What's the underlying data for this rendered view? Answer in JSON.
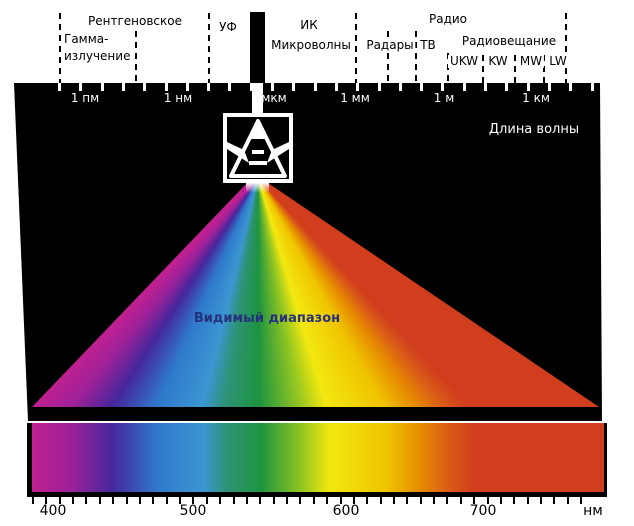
{
  "bands": {
    "gamma_line1": "Гамма-",
    "gamma_line2": "излучение",
    "xray": "Рентгеновское",
    "uv": "УФ",
    "ir": "ИК",
    "microwaves": "Микроволны",
    "radio": "Радио",
    "radar": "Радары",
    "tv": "ТВ",
    "broadcasting": "Радиовещание",
    "ukw": "UKW",
    "kw": "KW",
    "mw": "MW",
    "lw": "LW"
  },
  "wavelength_scale": {
    "labels": [
      "1 пм",
      "1 нм",
      "мкм",
      "1 мм",
      "1 м",
      "1 км"
    ],
    "axis_title": "Длина волны"
  },
  "visible_range_label": "Видимый диапазон",
  "bottom_axis": {
    "tick_labels": [
      "400",
      "500",
      "600",
      "700"
    ],
    "unit": "нм"
  },
  "spectrum": {
    "stops": [
      {
        "f": 0.0,
        "color": "#bf2090"
      },
      {
        "f": 0.07,
        "color": "#9c2199"
      },
      {
        "f": 0.14,
        "color": "#45279b"
      },
      {
        "f": 0.22,
        "color": "#2f79cb"
      },
      {
        "f": 0.3,
        "color": "#3b96d2"
      },
      {
        "f": 0.34,
        "color": "#2e9377"
      },
      {
        "f": 0.4,
        "color": "#1d9440"
      },
      {
        "f": 0.47,
        "color": "#8fc422"
      },
      {
        "f": 0.52,
        "color": "#f2e810"
      },
      {
        "f": 0.62,
        "color": "#f0c400"
      },
      {
        "f": 0.68,
        "color": "#e68a00"
      },
      {
        "f": 0.73,
        "color": "#d95a18"
      },
      {
        "f": 0.77,
        "color": "#d13e1d"
      },
      {
        "f": 1.0,
        "color": "#d13e1d"
      }
    ]
  },
  "colors": {
    "background": "#ffffff",
    "panel": "#000000",
    "scale_text": "#ffffff",
    "top_text": "#000000",
    "visible_label_text": "#26317d"
  }
}
